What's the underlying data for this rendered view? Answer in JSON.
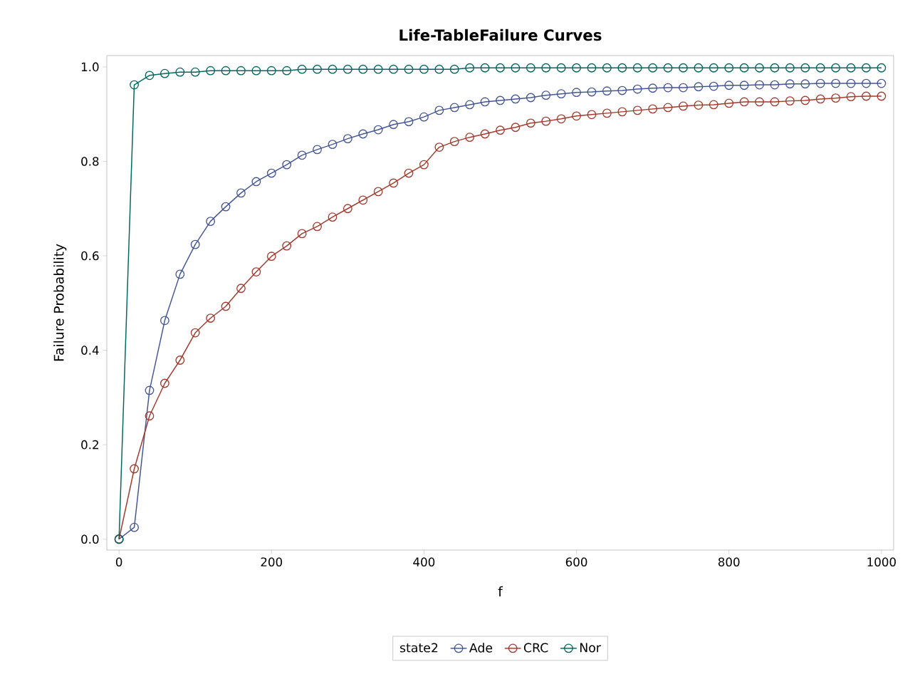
{
  "chart_data": {
    "type": "line",
    "title": "Life-TableFailure Curves",
    "xlabel": "f",
    "ylabel": "Failure Probability",
    "legend_title": "state2",
    "x": [
      0,
      20,
      40,
      60,
      80,
      100,
      120,
      140,
      160,
      180,
      200,
      220,
      240,
      260,
      280,
      300,
      320,
      340,
      360,
      380,
      400,
      420,
      440,
      460,
      480,
      500,
      520,
      540,
      560,
      580,
      600,
      620,
      640,
      660,
      680,
      700,
      720,
      740,
      760,
      780,
      800,
      820,
      840,
      860,
      880,
      900,
      920,
      940,
      960,
      980,
      1000
    ],
    "series": [
      {
        "name": "Ade",
        "color": "#445694",
        "values": [
          0,
          0.025,
          0.315,
          0.463,
          0.561,
          0.624,
          0.673,
          0.704,
          0.733,
          0.757,
          0.775,
          0.793,
          0.813,
          0.825,
          0.836,
          0.848,
          0.858,
          0.867,
          0.878,
          0.884,
          0.894,
          0.908,
          0.914,
          0.92,
          0.926,
          0.929,
          0.932,
          0.935,
          0.94,
          0.943,
          0.946,
          0.947,
          0.949,
          0.95,
          0.953,
          0.955,
          0.956,
          0.956,
          0.958,
          0.959,
          0.961,
          0.961,
          0.962,
          0.962,
          0.964,
          0.964,
          0.965,
          0.965,
          0.965,
          0.965,
          0.965
        ]
      },
      {
        "name": "CRC",
        "color": "#a23a2e",
        "values": [
          0,
          0.149,
          0.261,
          0.33,
          0.379,
          0.437,
          0.468,
          0.493,
          0.531,
          0.566,
          0.599,
          0.621,
          0.647,
          0.662,
          0.682,
          0.7,
          0.718,
          0.736,
          0.754,
          0.775,
          0.793,
          0.83,
          0.842,
          0.851,
          0.858,
          0.866,
          0.872,
          0.881,
          0.885,
          0.89,
          0.896,
          0.899,
          0.902,
          0.905,
          0.908,
          0.911,
          0.914,
          0.917,
          0.919,
          0.92,
          0.923,
          0.926,
          0.926,
          0.926,
          0.928,
          0.929,
          0.932,
          0.934,
          0.937,
          0.938,
          0.938
        ]
      },
      {
        "name": "Nor",
        "color": "#01665e",
        "values": [
          0,
          0.962,
          0.982,
          0.986,
          0.989,
          0.989,
          0.992,
          0.992,
          0.992,
          0.992,
          0.992,
          0.992,
          0.995,
          0.995,
          0.995,
          0.995,
          0.995,
          0.995,
          0.995,
          0.995,
          0.995,
          0.995,
          0.995,
          0.998,
          0.998,
          0.998,
          0.998,
          0.998,
          0.998,
          0.998,
          0.998,
          0.998,
          0.998,
          0.998,
          0.998,
          0.998,
          0.998,
          0.998,
          0.998,
          0.998,
          0.998,
          0.998,
          0.998,
          0.998,
          0.998,
          0.998,
          0.998,
          0.998,
          0.998,
          0.998,
          0.998
        ]
      }
    ],
    "xlim": [
      -16,
      1016
    ],
    "ylim": [
      -0.023,
      1.024
    ],
    "xticks": [
      0,
      200,
      400,
      600,
      800,
      1000
    ],
    "yticks": [
      {
        "value": 0,
        "label": "0.0"
      },
      0.2,
      0.4,
      0.6,
      0.8,
      {
        "value": 1,
        "label": "1.0"
      }
    ],
    "grid": false,
    "legend": "bottom",
    "marker": "circle",
    "line_style": "solid"
  }
}
